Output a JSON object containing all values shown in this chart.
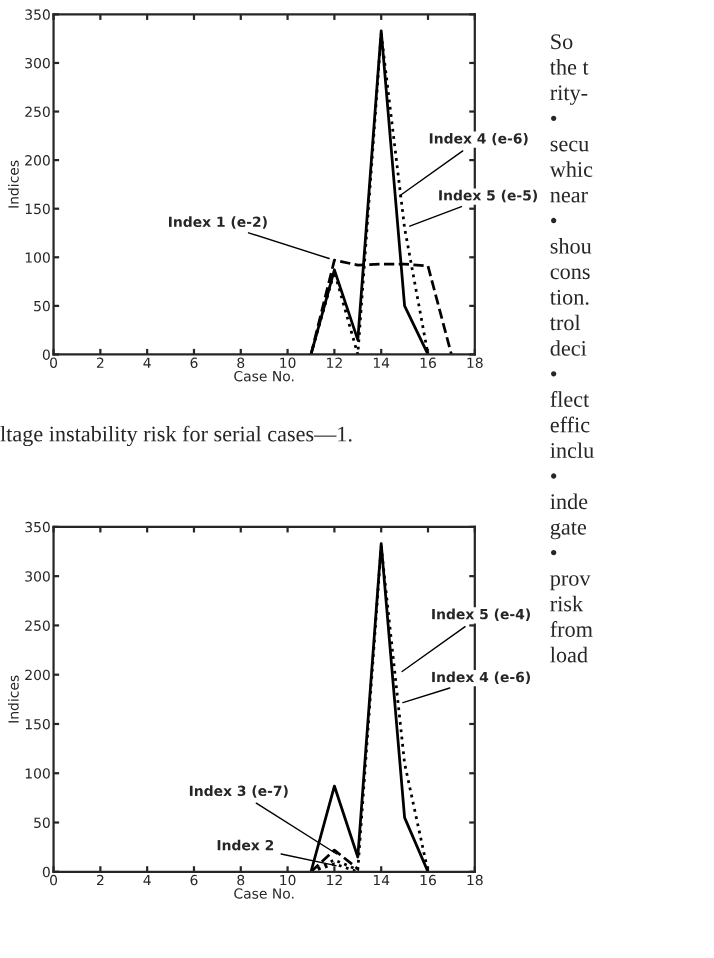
{
  "chart_data": [
    {
      "type": "line",
      "xlabel": "Case No.",
      "ylabel": "Indices",
      "xlim": [
        0,
        18
      ],
      "xticks": [
        0,
        2,
        4,
        6,
        8,
        10,
        12,
        14,
        16,
        18
      ],
      "ylim": [
        0,
        350
      ],
      "yticks": [
        0,
        50,
        100,
        150,
        200,
        250,
        300,
        350
      ],
      "grid": false,
      "legend": false,
      "series": [
        {
          "color": "#000000",
          "line_style": "solid",
          "x": [
            11,
            12,
            13,
            14,
            15,
            16
          ],
          "values": [
            0,
            87,
            15,
            333,
            50,
            0
          ]
        },
        {
          "color": "#000000",
          "line_style": "dotted",
          "x": [
            11,
            12,
            13,
            14,
            15,
            16
          ],
          "values": [
            0,
            85,
            0,
            330,
            130,
            0
          ]
        },
        {
          "color": "#000000",
          "line_style": "dashed",
          "x": [
            11,
            12,
            13,
            14,
            15,
            16,
            17
          ],
          "values": [
            0,
            97,
            92,
            93,
            93,
            91,
            0
          ]
        }
      ],
      "annotations": [
        {
          "text": "Index 1 (e-2)",
          "x": 12,
          "y": 97
        },
        {
          "text": "Index 4 (e-6)",
          "x": 14.6,
          "y": 160
        },
        {
          "text": "Index 5 (e-5)",
          "x": 15,
          "y": 130
        },
        "ltage instability risk for serial cases—1.",
        "So\nthe t\nrity-\n•\nsecu\nwhic\nnear\n•\nshou\ncons\ntion.\ntrol\ndeci\n•\nflect\neffic\ninclu\n•\ninde\ngate\n•\nprov\nrisk\nfrom\nload"
      ]
    },
    {
      "type": "line",
      "xlabel": "Case No.",
      "ylabel": "Indices",
      "xlim": [
        0,
        18
      ],
      "xticks": [
        0,
        2,
        4,
        6,
        8,
        10,
        12,
        14,
        16,
        18
      ],
      "ylim": [
        0,
        350
      ],
      "yticks": [
        0,
        50,
        100,
        150,
        200,
        250,
        300,
        350
      ],
      "grid": false,
      "legend": false,
      "series": [
        {
          "color": "#000000",
          "line_style": "solid",
          "x": [
            11,
            12,
            13,
            14,
            15,
            16
          ],
          "values": [
            0,
            87,
            15,
            333,
            55,
            0
          ]
        },
        {
          "color": "#000000",
          "line_style": "dotted",
          "x": [
            11,
            12,
            13,
            14,
            15,
            16
          ],
          "values": [
            0,
            12,
            2,
            330,
            110,
            0
          ]
        },
        {
          "color": "#000000",
          "line_style": "dashed",
          "x": [
            11,
            12,
            13
          ],
          "values": [
            0,
            22,
            3
          ]
        },
        {
          "color": "#000000",
          "line_style": "dotted",
          "x": [
            11,
            12,
            13
          ],
          "values": [
            0,
            8,
            0
          ]
        }
      ],
      "annotations": [
        {
          "text": "Index 5 (e-4)",
          "x": 14.7,
          "y": 200
        },
        {
          "text": "Index 4 (e-6)",
          "x": 14.7,
          "y": 170
        },
        {
          "text": "Index 3 (e-7)",
          "x": 12.3,
          "y": 15
        },
        {
          "text": "Index 2",
          "x": 12.3,
          "y": 5
        }
      ]
    }
  ]
}
